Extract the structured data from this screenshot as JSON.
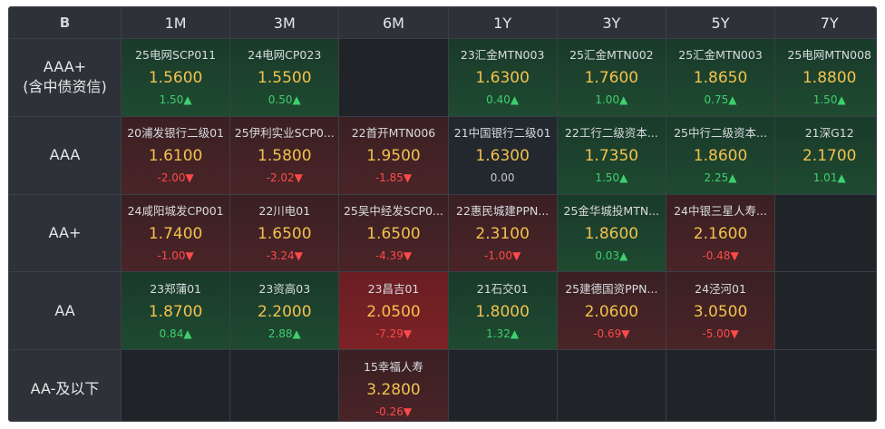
{
  "logo": "B",
  "columns": [
    "1M",
    "3M",
    "6M",
    "1Y",
    "3Y",
    "5Y",
    "7Y"
  ],
  "rows": [
    {
      "label_lines": [
        "AAA+",
        "(含中债资信)"
      ],
      "cells": [
        {
          "name": "25电网SCP011",
          "rate": "1.5600",
          "change": "1.50▲",
          "dir": "up",
          "tone": "green"
        },
        {
          "name": "24电网CP023",
          "rate": "1.5500",
          "change": "0.50▲",
          "dir": "up",
          "tone": "green"
        },
        null,
        {
          "name": "23汇金MTN003",
          "rate": "1.6300",
          "change": "0.40▲",
          "dir": "up",
          "tone": "green"
        },
        {
          "name": "25汇金MTN002",
          "rate": "1.7600",
          "change": "1.00▲",
          "dir": "up",
          "tone": "green"
        },
        {
          "name": "25汇金MTN003",
          "rate": "1.8650",
          "change": "0.75▲",
          "dir": "up",
          "tone": "green"
        },
        {
          "name": "25电网MTN008",
          "rate": "1.8800",
          "change": "1.50▲",
          "dir": "up",
          "tone": "green"
        }
      ]
    },
    {
      "label_lines": [
        "AAA"
      ],
      "cells": [
        {
          "name": "20浦发银行二级01",
          "rate": "1.6100",
          "change": "-2.00▼",
          "dir": "down",
          "tone": "red"
        },
        {
          "name": "25伊利实业SCP0...",
          "rate": "1.5800",
          "change": "-2.02▼",
          "dir": "down",
          "tone": "red"
        },
        {
          "name": "22首开MTN006",
          "rate": "1.9500",
          "change": "-1.85▼",
          "dir": "down",
          "tone": "red"
        },
        {
          "name": "21中国银行二级01",
          "rate": "1.6300",
          "change": "0.00",
          "dir": "flat",
          "tone": "neutral"
        },
        {
          "name": "22工行二级资本...",
          "rate": "1.7350",
          "change": "1.50▲",
          "dir": "up",
          "tone": "green"
        },
        {
          "name": "25中行二级资本...",
          "rate": "1.8600",
          "change": "2.25▲",
          "dir": "up",
          "tone": "green"
        },
        {
          "name": "21深G12",
          "rate": "2.1700",
          "change": "1.01▲",
          "dir": "up",
          "tone": "green"
        }
      ]
    },
    {
      "label_lines": [
        "AA+"
      ],
      "cells": [
        {
          "name": "24咸阳城发CP001",
          "rate": "1.7400",
          "change": "-1.00▼",
          "dir": "down",
          "tone": "red"
        },
        {
          "name": "22川电01",
          "rate": "1.6500",
          "change": "-3.24▼",
          "dir": "down",
          "tone": "red"
        },
        {
          "name": "25吴中经发SCP0...",
          "rate": "1.6500",
          "change": "-4.39▼",
          "dir": "down",
          "tone": "red"
        },
        {
          "name": "22惠民城建PPN...",
          "rate": "2.3100",
          "change": "-1.00▼",
          "dir": "down",
          "tone": "red"
        },
        {
          "name": "25金华城投MTN...",
          "rate": "1.8600",
          "change": "0.03▲",
          "dir": "up",
          "tone": "green"
        },
        {
          "name": "24中银三星人寿...",
          "rate": "2.1600",
          "change": "-0.48▼",
          "dir": "down",
          "tone": "red"
        },
        null
      ]
    },
    {
      "label_lines": [
        "AA"
      ],
      "cells": [
        {
          "name": "23郑蒲01",
          "rate": "1.8700",
          "change": "0.84▲",
          "dir": "up",
          "tone": "green"
        },
        {
          "name": "23资高03",
          "rate": "2.2000",
          "change": "2.88▲",
          "dir": "up",
          "tone": "green"
        },
        {
          "name": "23昌吉01",
          "rate": "2.0500",
          "change": "-7.29▼",
          "dir": "down",
          "tone": "red2"
        },
        {
          "name": "21石交01",
          "rate": "1.8000",
          "change": "1.32▲",
          "dir": "up",
          "tone": "green"
        },
        {
          "name": "25建德国资PPN...",
          "rate": "2.0600",
          "change": "-0.69▼",
          "dir": "down",
          "tone": "red"
        },
        {
          "name": "24泾河01",
          "rate": "3.0500",
          "change": "-5.00▼",
          "dir": "down",
          "tone": "red"
        },
        null
      ]
    },
    {
      "label_lines": [
        "AA-及以下"
      ],
      "cells": [
        null,
        null,
        {
          "name": "15幸福人寿",
          "rate": "3.2800",
          "change": "-0.26▼",
          "dir": "down",
          "tone": "red"
        },
        null,
        null,
        null,
        null
      ]
    }
  ],
  "colors": {
    "header_bg": "#2e3238",
    "rate_color": "#f2c14e",
    "up_color": "#3ecf6e",
    "down_color": "#ff4a4a"
  }
}
